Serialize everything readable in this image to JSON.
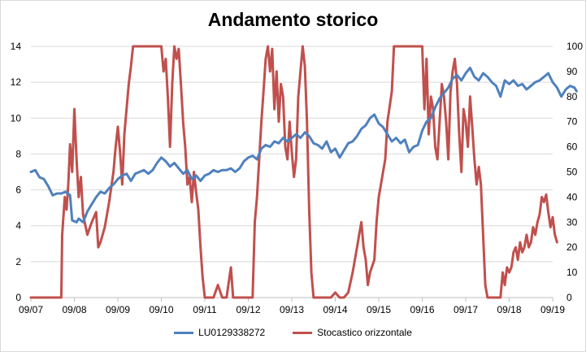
{
  "chart_data": {
    "type": "line",
    "title": "Andamento storico",
    "x_categories": [
      "09/07",
      "09/08",
      "09/09",
      "09/10",
      "09/11",
      "09/12",
      "09/13",
      "09/14",
      "09/15",
      "09/16",
      "09/17",
      "09/18",
      "09/19"
    ],
    "y_left": {
      "min": 0,
      "max": 14,
      "ticks": [
        "0",
        "2",
        "4",
        "6",
        "8",
        "10",
        "12",
        "14"
      ]
    },
    "y_right": {
      "min": 0,
      "max": 100,
      "ticks": [
        "0",
        "10",
        "20",
        "30",
        "40",
        "50",
        "60",
        "70",
        "80",
        "90",
        "100"
      ]
    },
    "grid": "horizontal",
    "legend_position": "bottom",
    "series": [
      {
        "name": "LU0129338272",
        "axis": "left",
        "color": "#4f81bd",
        "points": [
          [
            0,
            7.0
          ],
          [
            0.1,
            7.1
          ],
          [
            0.2,
            6.7
          ],
          [
            0.3,
            6.6
          ],
          [
            0.4,
            6.2
          ],
          [
            0.5,
            5.7
          ],
          [
            0.6,
            5.8
          ],
          [
            0.7,
            5.8
          ],
          [
            0.8,
            5.9
          ],
          [
            0.9,
            5.7
          ],
          [
            0.95,
            4.3
          ],
          [
            1.05,
            4.2
          ],
          [
            1.1,
            4.4
          ],
          [
            1.2,
            4.2
          ],
          [
            1.3,
            4.8
          ],
          [
            1.4,
            5.2
          ],
          [
            1.5,
            5.6
          ],
          [
            1.6,
            5.9
          ],
          [
            1.7,
            5.8
          ],
          [
            1.8,
            6.1
          ],
          [
            1.9,
            6.3
          ],
          [
            2.0,
            6.6
          ],
          [
            2.1,
            6.8
          ],
          [
            2.2,
            6.9
          ],
          [
            2.3,
            6.5
          ],
          [
            2.4,
            6.9
          ],
          [
            2.5,
            7.0
          ],
          [
            2.6,
            7.1
          ],
          [
            2.7,
            6.9
          ],
          [
            2.8,
            7.1
          ],
          [
            2.9,
            7.5
          ],
          [
            3.0,
            7.8
          ],
          [
            3.1,
            7.6
          ],
          [
            3.2,
            7.3
          ],
          [
            3.3,
            7.5
          ],
          [
            3.4,
            7.2
          ],
          [
            3.5,
            6.9
          ],
          [
            3.6,
            7.1
          ],
          [
            3.7,
            6.6
          ],
          [
            3.8,
            6.8
          ],
          [
            3.9,
            6.5
          ],
          [
            4.0,
            6.8
          ],
          [
            4.1,
            6.9
          ],
          [
            4.2,
            7.1
          ],
          [
            4.3,
            7.0
          ],
          [
            4.4,
            7.1
          ],
          [
            4.5,
            7.1
          ],
          [
            4.6,
            7.2
          ],
          [
            4.7,
            7.0
          ],
          [
            4.8,
            7.2
          ],
          [
            4.9,
            7.6
          ],
          [
            5.0,
            7.8
          ],
          [
            5.1,
            7.9
          ],
          [
            5.2,
            7.7
          ],
          [
            5.3,
            8.3
          ],
          [
            5.4,
            8.5
          ],
          [
            5.5,
            8.4
          ],
          [
            5.6,
            8.7
          ],
          [
            5.7,
            8.6
          ],
          [
            5.8,
            8.9
          ],
          [
            5.9,
            8.7
          ],
          [
            6.0,
            8.9
          ],
          [
            6.1,
            9.1
          ],
          [
            6.2,
            8.9
          ],
          [
            6.3,
            9.2
          ],
          [
            6.4,
            9.0
          ],
          [
            6.5,
            8.6
          ],
          [
            6.6,
            8.5
          ],
          [
            6.7,
            8.3
          ],
          [
            6.8,
            8.7
          ],
          [
            6.9,
            8.1
          ],
          [
            7.0,
            8.3
          ],
          [
            7.1,
            7.8
          ],
          [
            7.2,
            8.2
          ],
          [
            7.3,
            8.6
          ],
          [
            7.4,
            8.7
          ],
          [
            7.5,
            9.0
          ],
          [
            7.6,
            9.4
          ],
          [
            7.7,
            9.6
          ],
          [
            7.8,
            10.0
          ],
          [
            7.9,
            10.2
          ],
          [
            8.0,
            9.7
          ],
          [
            8.1,
            9.5
          ],
          [
            8.2,
            9.1
          ],
          [
            8.3,
            8.7
          ],
          [
            8.4,
            8.9
          ],
          [
            8.5,
            8.6
          ],
          [
            8.6,
            8.8
          ],
          [
            8.7,
            8.1
          ],
          [
            8.8,
            8.4
          ],
          [
            8.9,
            8.5
          ],
          [
            9.0,
            9.3
          ],
          [
            9.1,
            9.8
          ],
          [
            9.2,
            10.0
          ],
          [
            9.3,
            10.6
          ],
          [
            9.4,
            11.1
          ],
          [
            9.5,
            11.4
          ],
          [
            9.6,
            11.7
          ],
          [
            9.7,
            12.2
          ],
          [
            9.8,
            12.4
          ],
          [
            9.9,
            12.1
          ],
          [
            10.0,
            12.5
          ],
          [
            10.1,
            12.8
          ],
          [
            10.2,
            12.3
          ],
          [
            10.3,
            12.1
          ],
          [
            10.4,
            12.5
          ],
          [
            10.5,
            12.3
          ],
          [
            10.6,
            12.0
          ],
          [
            10.7,
            11.8
          ],
          [
            10.8,
            11.2
          ],
          [
            10.9,
            12.1
          ],
          [
            11.0,
            11.9
          ],
          [
            11.1,
            12.1
          ],
          [
            11.2,
            11.8
          ],
          [
            11.3,
            11.9
          ],
          [
            11.4,
            11.6
          ],
          [
            11.5,
            11.8
          ],
          [
            11.6,
            12.0
          ],
          [
            11.7,
            12.1
          ],
          [
            11.8,
            12.3
          ],
          [
            11.9,
            12.5
          ],
          [
            12.0,
            12.0
          ],
          [
            12.1,
            11.7
          ],
          [
            12.2,
            11.2
          ],
          [
            12.3,
            11.6
          ],
          [
            12.4,
            11.8
          ],
          [
            12.5,
            11.7
          ],
          [
            12.55,
            11.5
          ]
        ]
      },
      {
        "name": "Stocastico orizzontale",
        "axis": "right",
        "color": "#c0504d",
        "points": [
          [
            0,
            0
          ],
          [
            0.5,
            0
          ],
          [
            0.7,
            0
          ],
          [
            0.72,
            25
          ],
          [
            0.78,
            40
          ],
          [
            0.82,
            35
          ],
          [
            0.86,
            45
          ],
          [
            0.9,
            61
          ],
          [
            0.95,
            50
          ],
          [
            1.0,
            75
          ],
          [
            1.05,
            55
          ],
          [
            1.1,
            40
          ],
          [
            1.15,
            48
          ],
          [
            1.2,
            33
          ],
          [
            1.3,
            25
          ],
          [
            1.4,
            30
          ],
          [
            1.5,
            34
          ],
          [
            1.55,
            20
          ],
          [
            1.6,
            22
          ],
          [
            1.7,
            28
          ],
          [
            1.8,
            38
          ],
          [
            1.9,
            50
          ],
          [
            1.95,
            60
          ],
          [
            2.0,
            68
          ],
          [
            2.05,
            58
          ],
          [
            2.1,
            45
          ],
          [
            2.15,
            65
          ],
          [
            2.2,
            75
          ],
          [
            2.25,
            85
          ],
          [
            2.3,
            92
          ],
          [
            2.35,
            100
          ],
          [
            2.5,
            100
          ],
          [
            2.7,
            100
          ],
          [
            2.9,
            100
          ],
          [
            3.0,
            100
          ],
          [
            3.05,
            90
          ],
          [
            3.1,
            95
          ],
          [
            3.15,
            80
          ],
          [
            3.2,
            60
          ],
          [
            3.25,
            85
          ],
          [
            3.3,
            100
          ],
          [
            3.35,
            95
          ],
          [
            3.4,
            99
          ],
          [
            3.45,
            85
          ],
          [
            3.5,
            70
          ],
          [
            3.55,
            60
          ],
          [
            3.6,
            45
          ],
          [
            3.65,
            48
          ],
          [
            3.7,
            38
          ],
          [
            3.75,
            50
          ],
          [
            3.8,
            42
          ],
          [
            3.85,
            35
          ],
          [
            3.9,
            20
          ],
          [
            3.95,
            8
          ],
          [
            4.0,
            0
          ],
          [
            4.1,
            0
          ],
          [
            4.2,
            0
          ],
          [
            4.3,
            5
          ],
          [
            4.4,
            0
          ],
          [
            4.5,
            0
          ],
          [
            4.55,
            6
          ],
          [
            4.6,
            12
          ],
          [
            4.65,
            0
          ],
          [
            4.7,
            0
          ],
          [
            4.8,
            0
          ],
          [
            4.9,
            0
          ],
          [
            5.0,
            0
          ],
          [
            5.05,
            0
          ],
          [
            5.1,
            0
          ],
          [
            5.15,
            30
          ],
          [
            5.2,
            40
          ],
          [
            5.25,
            55
          ],
          [
            5.3,
            70
          ],
          [
            5.35,
            82
          ],
          [
            5.4,
            95
          ],
          [
            5.45,
            100
          ],
          [
            5.5,
            90
          ],
          [
            5.55,
            99
          ],
          [
            5.6,
            75
          ],
          [
            5.65,
            90
          ],
          [
            5.7,
            70
          ],
          [
            5.75,
            85
          ],
          [
            5.8,
            80
          ],
          [
            5.85,
            60
          ],
          [
            5.9,
            55
          ],
          [
            5.95,
            70
          ],
          [
            6.0,
            58
          ],
          [
            6.05,
            48
          ],
          [
            6.1,
            55
          ],
          [
            6.15,
            80
          ],
          [
            6.2,
            90
          ],
          [
            6.25,
            100
          ],
          [
            6.3,
            92
          ],
          [
            6.35,
            70
          ],
          [
            6.4,
            35
          ],
          [
            6.45,
            10
          ],
          [
            6.5,
            0
          ],
          [
            6.6,
            0
          ],
          [
            6.7,
            0
          ],
          [
            6.8,
            0
          ],
          [
            6.9,
            0
          ],
          [
            7.0,
            2
          ],
          [
            7.1,
            0
          ],
          [
            7.2,
            0
          ],
          [
            7.3,
            2
          ],
          [
            7.4,
            10
          ],
          [
            7.5,
            20
          ],
          [
            7.55,
            25
          ],
          [
            7.6,
            30
          ],
          [
            7.65,
            20
          ],
          [
            7.7,
            15
          ],
          [
            7.75,
            5
          ],
          [
            7.8,
            10
          ],
          [
            7.9,
            15
          ],
          [
            7.95,
            30
          ],
          [
            8.0,
            40
          ],
          [
            8.05,
            45
          ],
          [
            8.1,
            50
          ],
          [
            8.15,
            55
          ],
          [
            8.2,
            70
          ],
          [
            8.3,
            82
          ],
          [
            8.35,
            100
          ],
          [
            8.5,
            100
          ],
          [
            8.7,
            100
          ],
          [
            8.9,
            100
          ],
          [
            9.0,
            100
          ],
          [
            9.05,
            75
          ],
          [
            9.1,
            95
          ],
          [
            9.15,
            65
          ],
          [
            9.2,
            80
          ],
          [
            9.25,
            75
          ],
          [
            9.3,
            60
          ],
          [
            9.35,
            55
          ],
          [
            9.4,
            70
          ],
          [
            9.45,
            85
          ],
          [
            9.5,
            80
          ],
          [
            9.55,
            70
          ],
          [
            9.6,
            55
          ],
          [
            9.65,
            82
          ],
          [
            9.7,
            90
          ],
          [
            9.75,
            95
          ],
          [
            9.8,
            85
          ],
          [
            9.85,
            65
          ],
          [
            9.9,
            50
          ],
          [
            9.95,
            75
          ],
          [
            10.0,
            70
          ],
          [
            10.05,
            60
          ],
          [
            10.1,
            80
          ],
          [
            10.15,
            68
          ],
          [
            10.2,
            55
          ],
          [
            10.25,
            45
          ],
          [
            10.3,
            52
          ],
          [
            10.35,
            45
          ],
          [
            10.4,
            25
          ],
          [
            10.45,
            5
          ],
          [
            10.5,
            0
          ],
          [
            10.6,
            0
          ],
          [
            10.7,
            0
          ],
          [
            10.8,
            0
          ],
          [
            10.85,
            10
          ],
          [
            10.9,
            5
          ],
          [
            10.95,
            12
          ],
          [
            11.0,
            10
          ],
          [
            11.05,
            12
          ],
          [
            11.1,
            18
          ],
          [
            11.15,
            20
          ],
          [
            11.2,
            15
          ],
          [
            11.25,
            22
          ],
          [
            11.3,
            18
          ],
          [
            11.35,
            20
          ],
          [
            11.4,
            25
          ],
          [
            11.45,
            20
          ],
          [
            11.5,
            22
          ],
          [
            11.55,
            28
          ],
          [
            11.6,
            25
          ],
          [
            11.65,
            30
          ],
          [
            11.7,
            33
          ],
          [
            11.75,
            40
          ],
          [
            11.8,
            38
          ],
          [
            11.85,
            41
          ],
          [
            11.9,
            34
          ],
          [
            11.95,
            28
          ],
          [
            12.0,
            32
          ],
          [
            12.05,
            25
          ],
          [
            12.1,
            22
          ]
        ]
      }
    ]
  }
}
